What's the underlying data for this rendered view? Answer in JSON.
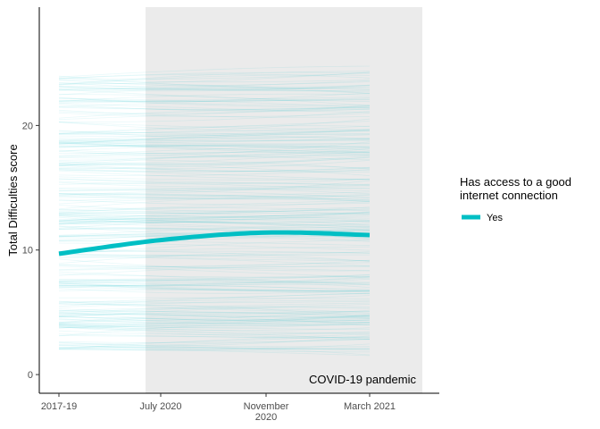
{
  "chart_data": {
    "type": "line",
    "ylabel": "Total Difficulties score",
    "x_ticks": [
      "2017-19",
      "July 2020",
      "November 2020",
      "March 2021"
    ],
    "y_ticks": [
      0,
      10,
      20
    ],
    "ylim": [
      -1.5,
      29.5
    ],
    "shaded_region": {
      "from": "July 2020",
      "label": "COVID-19 pandemic",
      "color": "#ebebeb"
    },
    "legend": {
      "title": "Has access to a good internet connection",
      "position": "right",
      "entries": [
        {
          "label": "Yes",
          "color": "#00bfc4"
        }
      ]
    },
    "series": [
      {
        "name": "Yes",
        "color": "#00bfc4",
        "x": [
          "2017-19",
          "July 2020",
          "November 2020",
          "March 2021"
        ],
        "values": [
          9.7,
          10.8,
          11.4,
          11.2
        ]
      }
    ],
    "individual_trajectories": {
      "color": "#00bfc4",
      "description_range": [
        1,
        25
      ]
    },
    "grid": false
  }
}
